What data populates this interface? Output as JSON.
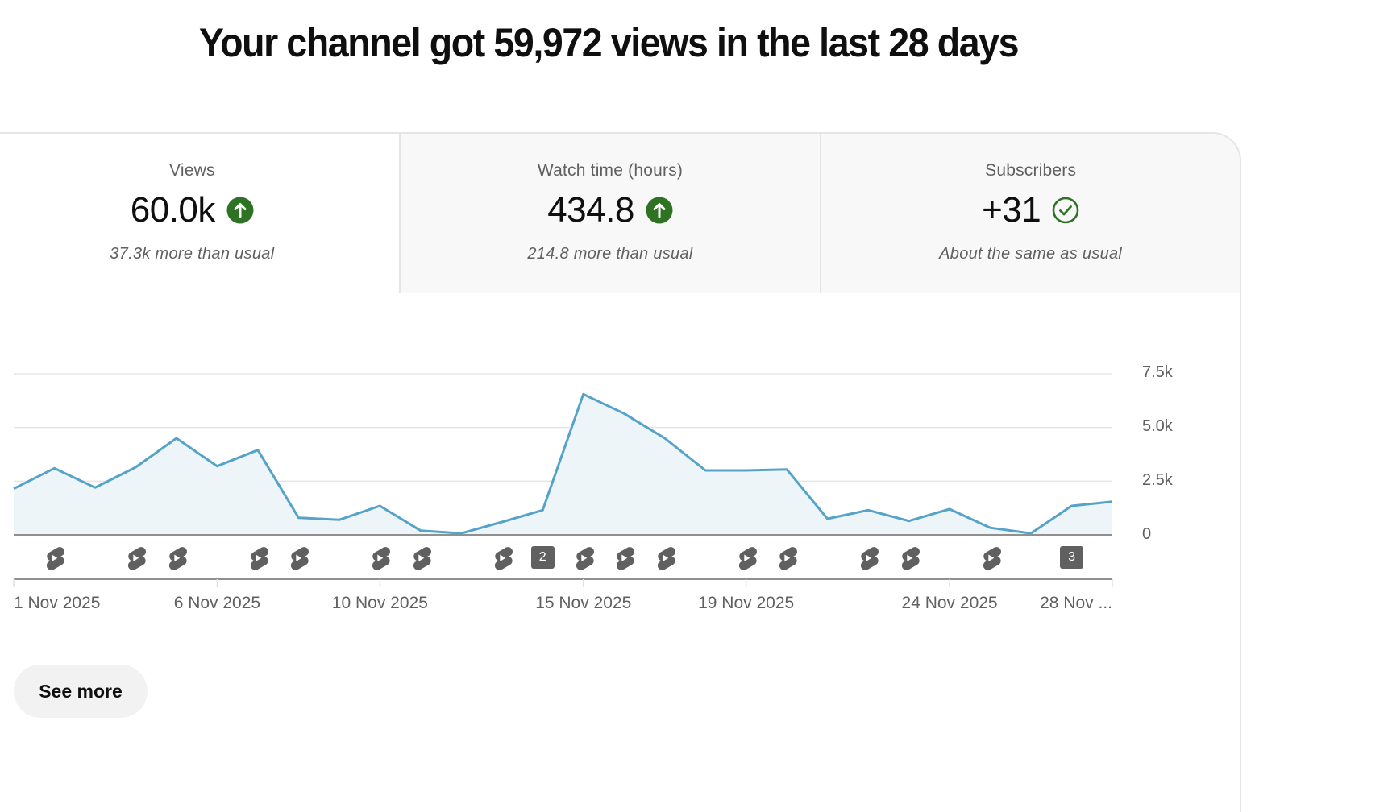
{
  "headline": "Your channel got 59,972 views in the last 28 days",
  "tabs": [
    {
      "label": "Views",
      "value": "60.0k",
      "status_icon": "arrow-up-circle-icon",
      "note": "37.3k more than usual",
      "active": true
    },
    {
      "label": "Watch time (hours)",
      "value": "434.8",
      "status_icon": "arrow-up-circle-icon",
      "note": "214.8 more than usual",
      "active": false
    },
    {
      "label": "Subscribers",
      "value": "+31",
      "status_icon": "check-circle-icon",
      "note": "About the same as usual",
      "active": false
    }
  ],
  "colors": {
    "line": "#55a3c8",
    "area_fill": "#eef5f9",
    "status_green": "#2e7323",
    "gridline": "#e5e5e5",
    "axis": "#909090",
    "marker": "#606060"
  },
  "chart_data": {
    "type": "area",
    "title": "Views",
    "xlabel": "",
    "ylabel": "",
    "ylim": [
      0,
      7500
    ],
    "grid": true,
    "legend": "none",
    "y_axis_position": "right",
    "y_ticks": [
      "0",
      "2.5k",
      "5.0k",
      "7.5k"
    ],
    "y_tick_values": [
      0,
      2500,
      5000,
      7500
    ],
    "x_tick_labels": [
      {
        "label": "1 Nov 2025",
        "index": 0
      },
      {
        "label": "6 Nov 2025",
        "index": 5
      },
      {
        "label": "10 Nov 2025",
        "index": 9
      },
      {
        "label": "15 Nov 2025",
        "index": 14
      },
      {
        "label": "19 Nov 2025",
        "index": 18
      },
      {
        "label": "24 Nov 2025",
        "index": 23
      },
      {
        "label": "28 Nov ...",
        "index": 27
      }
    ],
    "categories": [
      "1 Nov",
      "2 Nov",
      "3 Nov",
      "4 Nov",
      "5 Nov",
      "6 Nov",
      "7 Nov",
      "8 Nov",
      "9 Nov",
      "10 Nov",
      "11 Nov",
      "12 Nov",
      "13 Nov",
      "14 Nov",
      "15 Nov",
      "16 Nov",
      "17 Nov",
      "18 Nov",
      "19 Nov",
      "20 Nov",
      "21 Nov",
      "22 Nov",
      "23 Nov",
      "24 Nov",
      "25 Nov",
      "26 Nov",
      "27 Nov",
      "28 Nov"
    ],
    "series": [
      {
        "name": "Views",
        "values": [
          2150,
          3100,
          2200,
          3150,
          4500,
          3200,
          3950,
          800,
          700,
          1350,
          200,
          70,
          600,
          1150,
          6550,
          5650,
          4500,
          3000,
          3000,
          3050,
          750,
          1150,
          650,
          1200,
          330,
          70,
          1350,
          1550
        ]
      }
    ],
    "upload_markers": [
      {
        "index": 1,
        "type": "short",
        "count": 1
      },
      {
        "index": 3,
        "type": "short",
        "count": 1
      },
      {
        "index": 4,
        "type": "short",
        "count": 1
      },
      {
        "index": 6,
        "type": "short",
        "count": 1
      },
      {
        "index": 7,
        "type": "short",
        "count": 1
      },
      {
        "index": 9,
        "type": "short",
        "count": 1
      },
      {
        "index": 10,
        "type": "short",
        "count": 1
      },
      {
        "index": 12,
        "type": "short",
        "count": 1
      },
      {
        "index": 13,
        "type": "group",
        "count": 2,
        "label": "2"
      },
      {
        "index": 14,
        "type": "short",
        "count": 1
      },
      {
        "index": 15,
        "type": "short",
        "count": 1
      },
      {
        "index": 16,
        "type": "short",
        "count": 1
      },
      {
        "index": 18,
        "type": "short",
        "count": 1
      },
      {
        "index": 19,
        "type": "short",
        "count": 1
      },
      {
        "index": 21,
        "type": "short",
        "count": 1
      },
      {
        "index": 22,
        "type": "short",
        "count": 1
      },
      {
        "index": 24,
        "type": "short",
        "count": 1
      },
      {
        "index": 26,
        "type": "group",
        "count": 3,
        "label": "3"
      }
    ]
  },
  "actions": {
    "see_more_label": "See more"
  }
}
